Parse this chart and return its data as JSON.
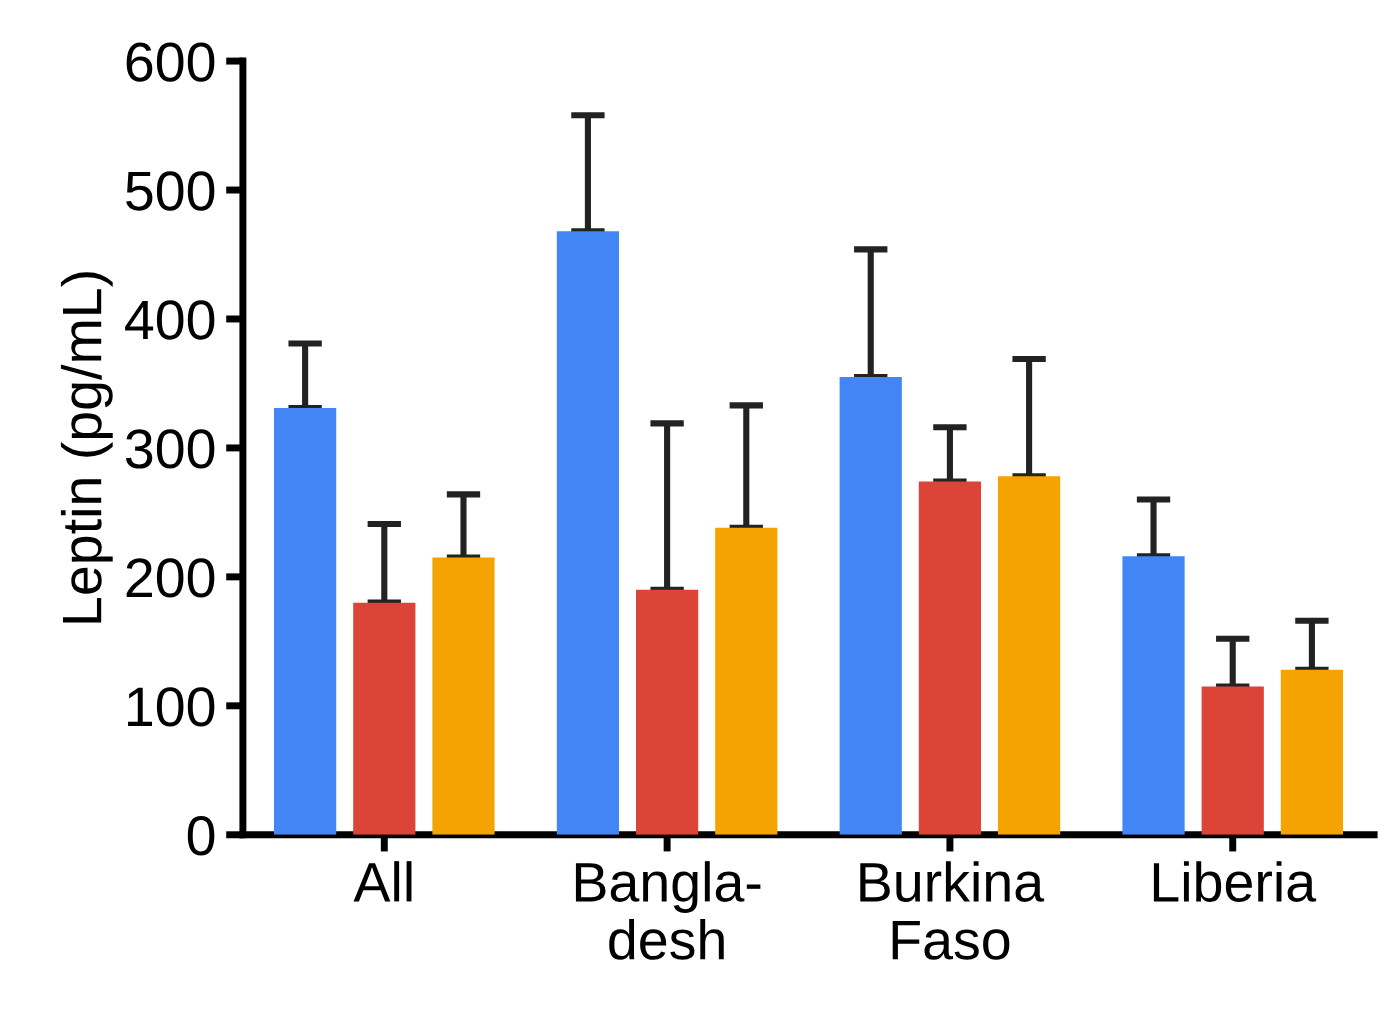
{
  "chart_data": {
    "type": "bar",
    "ylabel": "Leptin (pg/mL)",
    "categories": [
      "All",
      "Bangla-\ndesh",
      "Burkina\nFaso",
      "Liberia"
    ],
    "series": [
      {
        "color": "#4285f4",
        "values": [
          331,
          468,
          355,
          216
        ],
        "errors": [
          [
            331,
            381
          ],
          [
            468,
            558
          ],
          [
            355,
            454
          ],
          [
            216,
            260
          ]
        ]
      },
      {
        "color": "#dc4437",
        "values": [
          180,
          190,
          274,
          115
        ],
        "errors": [
          [
            180,
            241
          ],
          [
            190,
            319
          ],
          [
            274,
            316
          ],
          [
            115,
            152
          ]
        ]
      },
      {
        "color": "#f4a300",
        "values": [
          215,
          238,
          278,
          128
        ],
        "errors": [
          [
            215,
            264
          ],
          [
            238,
            333
          ],
          [
            278,
            369
          ],
          [
            128,
            166
          ]
        ]
      }
    ],
    "ylim": [
      0,
      600
    ],
    "yticks": [
      0,
      100,
      200,
      300,
      400,
      500,
      600
    ],
    "grid": false,
    "legend": false
  }
}
